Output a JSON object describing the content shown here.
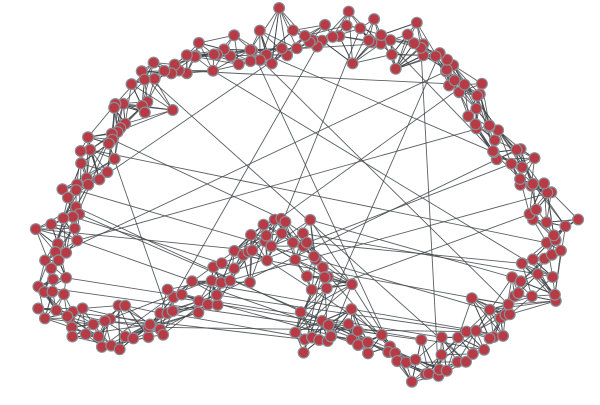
{
  "figure": {
    "type": "network-graph",
    "layout": "force-directed",
    "node_count": 290,
    "edge_count": 1300,
    "long_range_edge_count": 60,
    "node_style": "filled circle",
    "edge_style": "straight line"
  },
  "colors": {
    "background": "#ffffff",
    "node_fill": "#b83a44",
    "node_stroke": "#8a8f96",
    "edge": "#3f4448"
  }
}
